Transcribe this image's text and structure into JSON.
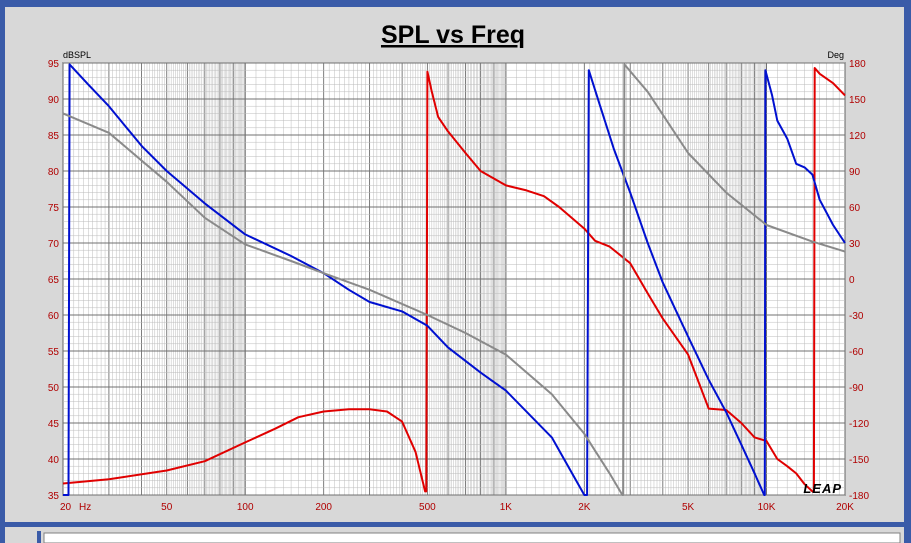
{
  "colors": {
    "frame_blue": "#3a5ba8",
    "panel": "#d8d8d8",
    "axis_text": "#b00000",
    "series_red": "#e00000",
    "series_blue": "#0010d0",
    "series_gray": "#8a8a8a"
  },
  "logo_text": "LEAP",
  "chart_data": {
    "type": "line",
    "title": "SPL vs Freq",
    "xlabel": "Hz",
    "ylabel": "dBSPL",
    "y2label": "Deg",
    "xscale": "log",
    "xlim": [
      20,
      20000
    ],
    "ylim": [
      35,
      95
    ],
    "y2lim": [
      -180,
      180
    ],
    "grid": true,
    "x_ticks": [
      {
        "v": 20,
        "label": "20"
      },
      {
        "v": 50,
        "label": "50"
      },
      {
        "v": 100,
        "label": "100"
      },
      {
        "v": 200,
        "label": "200"
      },
      {
        "v": 500,
        "label": "500"
      },
      {
        "v": 1000,
        "label": "1K"
      },
      {
        "v": 2000,
        "label": "2K"
      },
      {
        "v": 5000,
        "label": "5K"
      },
      {
        "v": 10000,
        "label": "10K"
      },
      {
        "v": 20000,
        "label": "20K"
      }
    ],
    "y_ticks": [
      {
        "v": 95,
        "label": "95"
      },
      {
        "v": 90,
        "label": "90"
      },
      {
        "v": 85,
        "label": "85"
      },
      {
        "v": 80,
        "label": "80"
      },
      {
        "v": 75,
        "label": "75"
      },
      {
        "v": 70,
        "label": "70"
      },
      {
        "v": 65,
        "label": "65"
      },
      {
        "v": 60,
        "label": "60"
      },
      {
        "v": 55,
        "label": "55"
      },
      {
        "v": 50,
        "label": "50"
      },
      {
        "v": 45,
        "label": "45"
      },
      {
        "v": 40,
        "label": "40"
      },
      {
        "v": 35,
        "label": "35"
      }
    ],
    "y2_ticks": [
      {
        "v": 180,
        "label": "180"
      },
      {
        "v": 150,
        "label": "150"
      },
      {
        "v": 120,
        "label": "120"
      },
      {
        "v": 90,
        "label": "90"
      },
      {
        "v": 60,
        "label": "60"
      },
      {
        "v": 30,
        "label": "30"
      },
      {
        "v": 0,
        "label": "0"
      },
      {
        "v": -30,
        "label": "-30"
      },
      {
        "v": -60,
        "label": "-60"
      },
      {
        "v": -90,
        "label": "-90"
      },
      {
        "v": -120,
        "label": "-120"
      },
      {
        "v": -150,
        "label": "-150"
      },
      {
        "v": -180,
        "label": "-180"
      }
    ],
    "series": [
      {
        "color": "#e00000",
        "points": [
          [
            20,
            36.6
          ],
          [
            30,
            37.2
          ],
          [
            50,
            38.4
          ],
          [
            70,
            39.7
          ],
          [
            100,
            42.3
          ],
          [
            130,
            44.2
          ],
          [
            160,
            45.8
          ],
          [
            200,
            46.6
          ],
          [
            250,
            46.9
          ],
          [
            300,
            46.9
          ],
          [
            350,
            46.6
          ],
          [
            400,
            45.2
          ],
          [
            450,
            41.0
          ],
          [
            490,
            35.5
          ],
          [
            495,
            35.5
          ],
          [
            500,
            93.8
          ],
          [
            520,
            91.0
          ],
          [
            550,
            87.5
          ],
          [
            600,
            85.5
          ],
          [
            700,
            82.5
          ],
          [
            800,
            80.0
          ],
          [
            1000,
            78.0
          ],
          [
            1200,
            77.3
          ],
          [
            1400,
            76.5
          ],
          [
            1600,
            75.0
          ],
          [
            2000,
            72.0
          ],
          [
            2200,
            70.3
          ],
          [
            2500,
            69.5
          ],
          [
            3000,
            67.2
          ],
          [
            3500,
            63.0
          ],
          [
            4000,
            59.5
          ],
          [
            5000,
            54.5
          ],
          [
            6000,
            47.0
          ],
          [
            7000,
            46.8
          ],
          [
            8000,
            45.0
          ],
          [
            9000,
            43.0
          ],
          [
            10000,
            42.5
          ],
          [
            11000,
            40.0
          ],
          [
            12000,
            39.0
          ],
          [
            13000,
            38.0
          ],
          [
            14000,
            36.5
          ],
          [
            15000,
            35.5
          ],
          [
            15200,
            35.5
          ],
          [
            15300,
            94.3
          ],
          [
            16000,
            93.5
          ],
          [
            18000,
            92.2
          ],
          [
            20000,
            90.5
          ]
        ]
      },
      {
        "color": "#0010d0",
        "points": [
          [
            20,
            35.0
          ],
          [
            21,
            35.0
          ],
          [
            21.2,
            94.8
          ],
          [
            25,
            92.0
          ],
          [
            30,
            89.0
          ],
          [
            40,
            83.5
          ],
          [
            50,
            80.0
          ],
          [
            70,
            75.5
          ],
          [
            100,
            71.2
          ],
          [
            150,
            68.2
          ],
          [
            200,
            65.8
          ],
          [
            250,
            63.5
          ],
          [
            300,
            61.8
          ],
          [
            400,
            60.5
          ],
          [
            500,
            58.5
          ],
          [
            600,
            55.5
          ],
          [
            800,
            52.0
          ],
          [
            1000,
            49.5
          ],
          [
            1500,
            43.0
          ],
          [
            2000,
            35.0
          ],
          [
            2050,
            35.0
          ],
          [
            2080,
            94.0
          ],
          [
            2300,
            89.0
          ],
          [
            2600,
            83.0
          ],
          [
            3000,
            77.0
          ],
          [
            3500,
            70.0
          ],
          [
            4000,
            64.5
          ],
          [
            5000,
            57.0
          ],
          [
            6000,
            51.0
          ],
          [
            7000,
            46.5
          ],
          [
            8000,
            42.0
          ],
          [
            9000,
            38.0
          ],
          [
            9800,
            35.0
          ],
          [
            9850,
            35.0
          ],
          [
            9900,
            94.0
          ],
          [
            10500,
            90.5
          ],
          [
            11000,
            87.0
          ],
          [
            12000,
            84.5
          ],
          [
            13000,
            81.0
          ],
          [
            14000,
            80.5
          ],
          [
            15000,
            79.5
          ],
          [
            16000,
            76.0
          ],
          [
            18000,
            72.5
          ],
          [
            20000,
            70.0
          ]
        ]
      },
      {
        "color": "#8a8a8a",
        "points": [
          [
            20,
            88.0
          ],
          [
            30,
            85.3
          ],
          [
            50,
            78.5
          ],
          [
            70,
            73.5
          ],
          [
            100,
            69.8
          ],
          [
            150,
            67.5
          ],
          [
            200,
            65.8
          ],
          [
            300,
            63.5
          ],
          [
            500,
            60.0
          ],
          [
            700,
            57.5
          ],
          [
            1000,
            54.5
          ],
          [
            1500,
            49.0
          ],
          [
            2000,
            43.5
          ],
          [
            2500,
            38.0
          ],
          [
            2800,
            35.0
          ],
          [
            2820,
            35.0
          ],
          [
            2850,
            94.8
          ],
          [
            3500,
            91.0
          ],
          [
            5000,
            82.5
          ],
          [
            7000,
            77.0
          ],
          [
            10000,
            72.5
          ],
          [
            15000,
            70.2
          ],
          [
            20000,
            68.8
          ]
        ]
      }
    ]
  }
}
